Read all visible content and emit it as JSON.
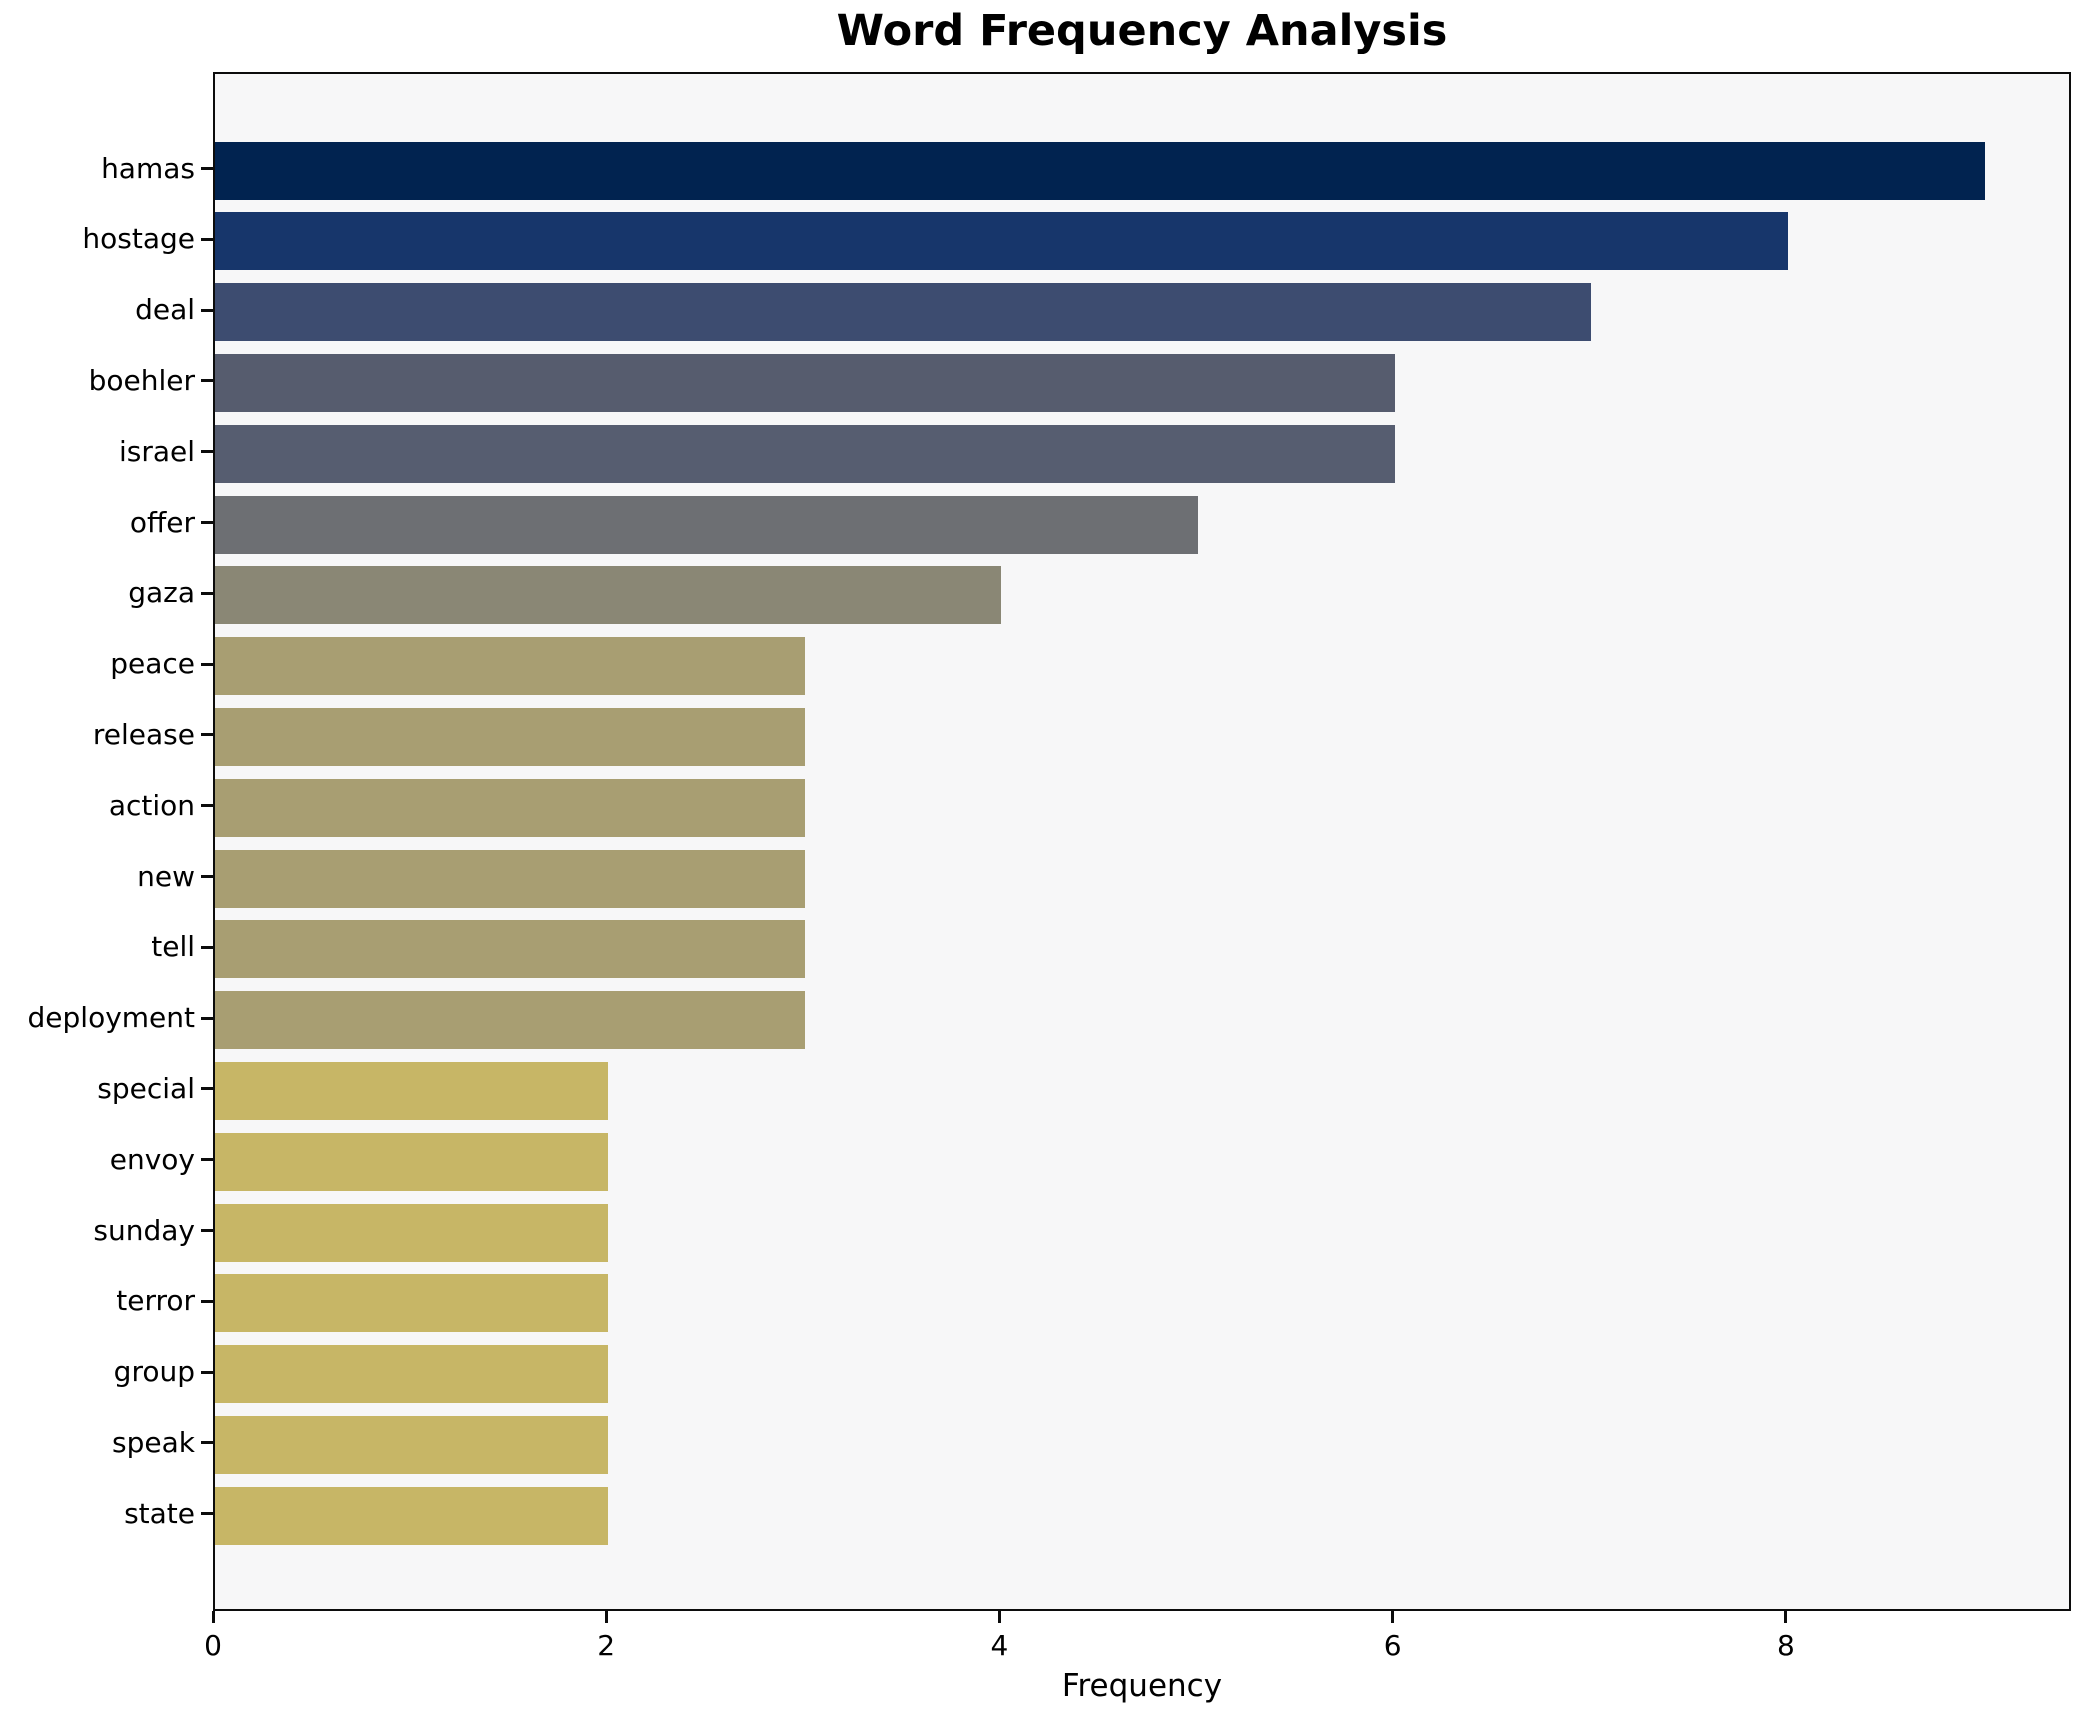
{
  "chart_data": {
    "type": "bar",
    "orientation": "horizontal",
    "title": "Word Frequency Analysis",
    "xlabel": "Frequency",
    "ylabel": "",
    "categories": [
      "hamas",
      "hostage",
      "deal",
      "boehler",
      "israel",
      "offer",
      "gaza",
      "peace",
      "release",
      "action",
      "new",
      "tell",
      "deployment",
      "special",
      "envoy",
      "sunday",
      "terror",
      "group",
      "speak",
      "state"
    ],
    "values": [
      9,
      8,
      7,
      6,
      6,
      5,
      4,
      3,
      3,
      3,
      3,
      3,
      3,
      2,
      2,
      2,
      2,
      2,
      2,
      2
    ],
    "bar_colors": [
      "#012350",
      "#17366b",
      "#3d4c70",
      "#565c6e",
      "#565d70",
      "#6d6f73",
      "#8a8775",
      "#a89e72",
      "#a89e72",
      "#a89e72",
      "#a89e72",
      "#a89e72",
      "#a89e72",
      "#c7b666",
      "#c7b666",
      "#c7b666",
      "#c7b666",
      "#c7b666",
      "#c7b666",
      "#c7b666"
    ],
    "xlim": [
      0,
      9.45
    ],
    "xticks": [
      0,
      2,
      4,
      6,
      8
    ],
    "grid": false,
    "legend": "none",
    "plot_background": "#f7f7f8",
    "figure_background": "#ffffff",
    "spine_color": "#0c0c0c"
  }
}
